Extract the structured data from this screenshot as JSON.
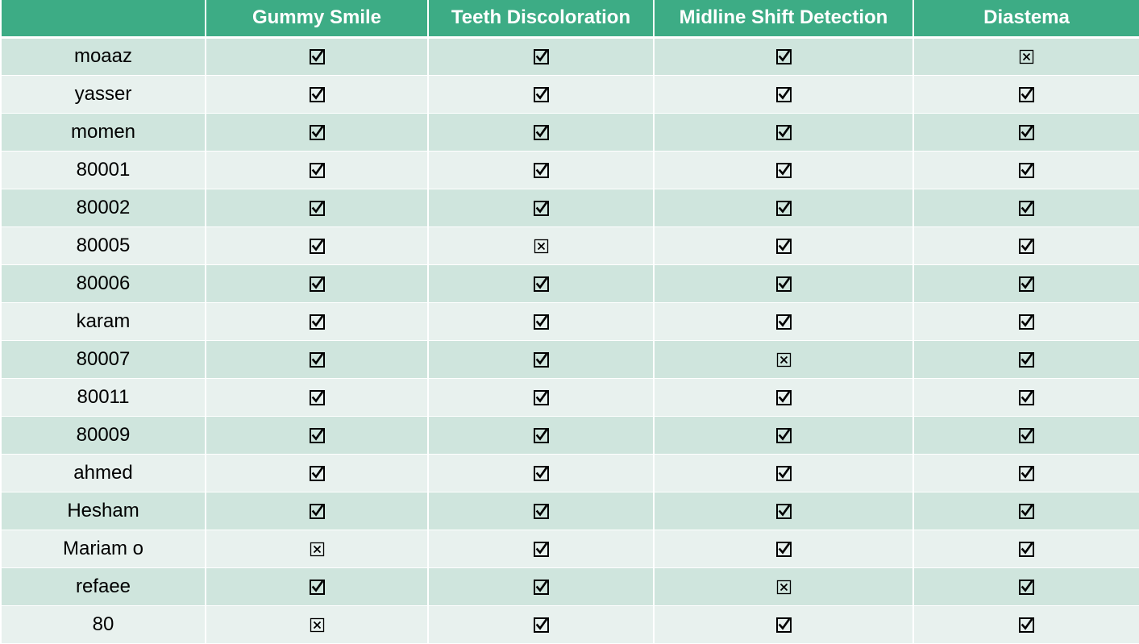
{
  "table": {
    "headers": [
      "",
      "Gummy Smile",
      "Teeth Discoloration",
      "Midline Shift Detection",
      "Diastema"
    ],
    "rows": [
      {
        "name": "moaaz",
        "cells": [
          "checked",
          "checked",
          "checked",
          "crossed"
        ]
      },
      {
        "name": "yasser",
        "cells": [
          "checked",
          "checked",
          "checked",
          "checked"
        ]
      },
      {
        "name": "momen",
        "cells": [
          "checked",
          "checked",
          "checked",
          "checked"
        ]
      },
      {
        "name": "80001",
        "cells": [
          "checked",
          "checked",
          "checked",
          "checked"
        ]
      },
      {
        "name": "80002",
        "cells": [
          "checked",
          "checked",
          "checked",
          "checked"
        ]
      },
      {
        "name": "80005",
        "cells": [
          "checked",
          "crossed",
          "checked",
          "checked"
        ]
      },
      {
        "name": "80006",
        "cells": [
          "checked",
          "checked",
          "checked",
          "checked"
        ]
      },
      {
        "name": "karam",
        "cells": [
          "checked",
          "checked",
          "checked",
          "checked"
        ]
      },
      {
        "name": "80007",
        "cells": [
          "checked",
          "checked",
          "crossed",
          "checked"
        ]
      },
      {
        "name": "80011",
        "cells": [
          "checked",
          "checked",
          "checked",
          "checked"
        ]
      },
      {
        "name": "80009",
        "cells": [
          "checked",
          "checked",
          "checked",
          "checked"
        ]
      },
      {
        "name": "ahmed",
        "cells": [
          "checked",
          "checked",
          "checked",
          "checked"
        ]
      },
      {
        "name": "Hesham",
        "cells": [
          "checked",
          "checked",
          "checked",
          "checked"
        ]
      },
      {
        "name": "Mariam o",
        "cells": [
          "crossed",
          "checked",
          "checked",
          "checked"
        ]
      },
      {
        "name": "refaee",
        "cells": [
          "checked",
          "checked",
          "crossed",
          "checked"
        ]
      },
      {
        "name": "80",
        "cells": [
          "crossed",
          "checked",
          "checked",
          "checked"
        ]
      }
    ]
  },
  "icons": {
    "checked": "check-box-icon",
    "crossed": "x-box-icon"
  },
  "colors": {
    "header_bg": "#3dac85",
    "header_text": "#ffffff",
    "row_odd_bg": "#cfe5dd",
    "row_even_bg": "#e8f1ee"
  }
}
